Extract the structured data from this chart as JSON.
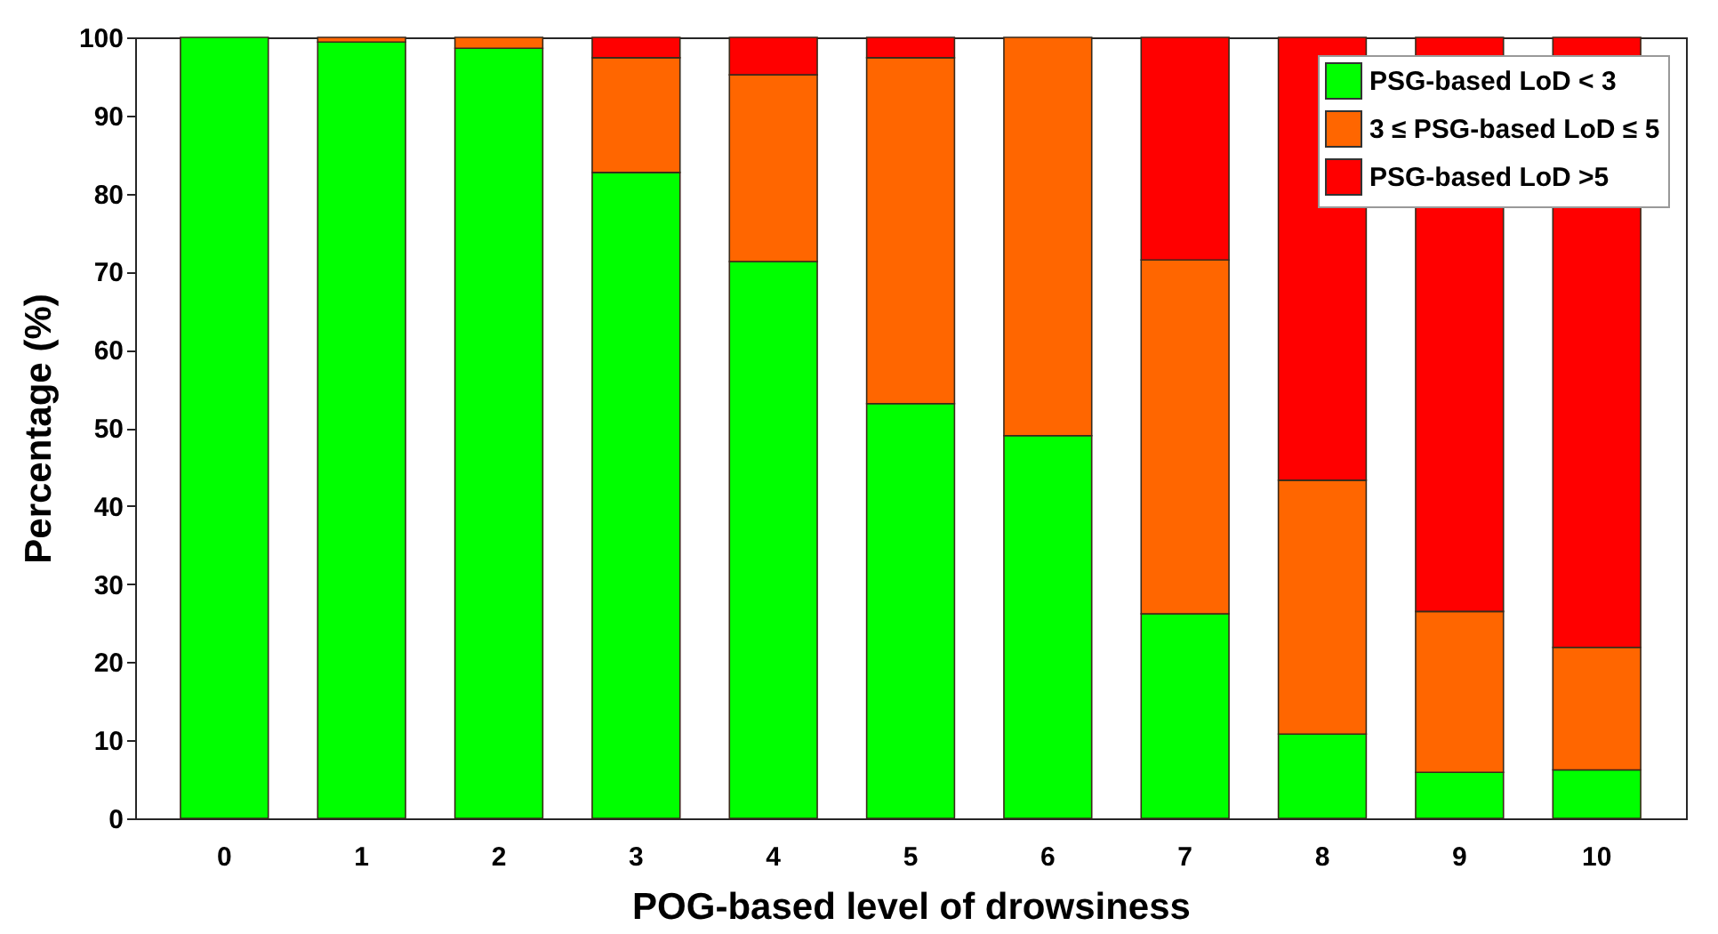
{
  "chart_data": {
    "type": "bar",
    "stacked": true,
    "xlabel": "POG-based level of drowsiness",
    "ylabel": "Percentage (%)",
    "categories": [
      "0",
      "1",
      "2",
      "3",
      "4",
      "5",
      "6",
      "7",
      "8",
      "9",
      "10"
    ],
    "series": [
      {
        "name": "PSG-based LoD < 3",
        "color": "#00ff00",
        "values": [
          100,
          99.4,
          98.6,
          82.7,
          71.3,
          53.1,
          49,
          26.2,
          10.8,
          5.9,
          6.2
        ]
      },
      {
        "name": "3 ≤ PSG-based LoD ≤ 5",
        "color": "#ff6600",
        "values": [
          null,
          0.6,
          1.4,
          14.7,
          23.9,
          44.3,
          51,
          45.3,
          32.5,
          20.6,
          15.7
        ]
      },
      {
        "name": "PSG-based LoD >5",
        "color": "#ff0000",
        "values": [
          null,
          null,
          null,
          2.6,
          4.8,
          2.6,
          null,
          28.5,
          56.7,
          73.5,
          78.1
        ]
      }
    ],
    "ylim": [
      0,
      100
    ],
    "yticks": [
      0,
      10,
      20,
      30,
      40,
      50,
      60,
      70,
      80,
      90,
      100
    ],
    "legend": "top right"
  }
}
